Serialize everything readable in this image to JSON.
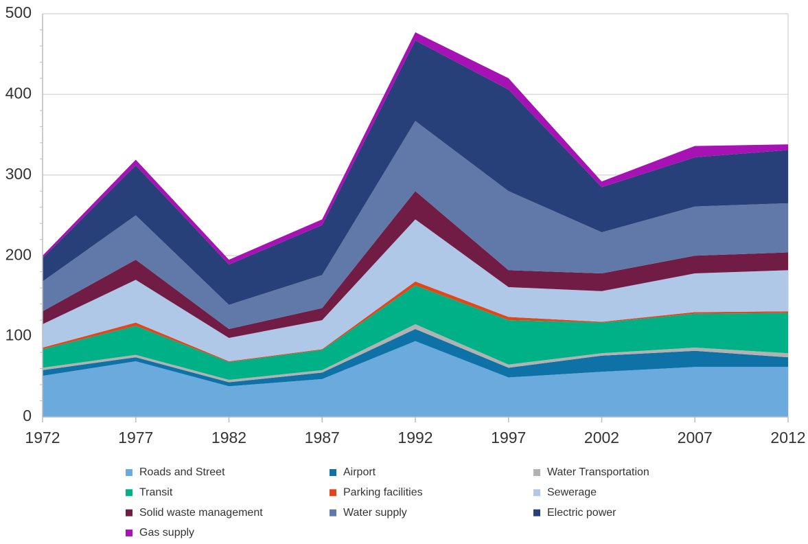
{
  "chart_data": {
    "type": "stacked_area",
    "x": [
      1972,
      1977,
      1982,
      1987,
      1992,
      1997,
      2002,
      2007,
      2012
    ],
    "xlim": [
      1972,
      2012
    ],
    "xticks": [
      1972,
      1977,
      1982,
      1987,
      1992,
      1997,
      2002,
      2007,
      2012
    ],
    "ylim": [
      0,
      500
    ],
    "yticks": [
      0,
      100,
      200,
      300,
      400,
      500
    ],
    "grid": true,
    "series": [
      {
        "name": "Roads and Street",
        "color": "#6aaadc",
        "values": [
          51,
          69,
          38,
          47,
          94,
          49,
          56,
          62,
          62
        ]
      },
      {
        "name": "Airport",
        "color": "#0f72a6",
        "values": [
          7,
          5,
          5,
          8,
          15,
          12,
          20,
          20,
          12
        ]
      },
      {
        "name": "Water Transportation",
        "color": "#b2b2b2",
        "values": [
          3,
          3,
          3,
          3,
          6,
          4,
          3,
          4,
          5
        ]
      },
      {
        "name": "Transit",
        "color": "#00b087",
        "values": [
          23,
          36,
          22,
          25,
          48,
          55,
          38,
          42,
          50
        ]
      },
      {
        "name": "Parking facilities",
        "color": "#e0481c",
        "values": [
          2,
          4,
          1,
          1,
          5,
          4,
          1,
          2,
          2
        ]
      },
      {
        "name": "Sewerage",
        "color": "#b0c8e8",
        "values": [
          29,
          53,
          29,
          36,
          77,
          37,
          38,
          48,
          51
        ]
      },
      {
        "name": "Solid waste management",
        "color": "#701c44",
        "values": [
          16,
          25,
          11,
          15,
          35,
          21,
          22,
          22,
          22
        ]
      },
      {
        "name": "Water supply",
        "color": "#6079a8",
        "values": [
          37,
          55,
          30,
          41,
          87,
          98,
          51,
          61,
          61
        ]
      },
      {
        "name": "Electric power",
        "color": "#28407a",
        "values": [
          29,
          62,
          50,
          62,
          100,
          126,
          56,
          61,
          66
        ]
      },
      {
        "name": "Gas supply",
        "color": "#a612b4",
        "values": [
          3,
          7,
          6,
          7,
          10,
          14,
          7,
          14,
          7
        ]
      }
    ]
  }
}
